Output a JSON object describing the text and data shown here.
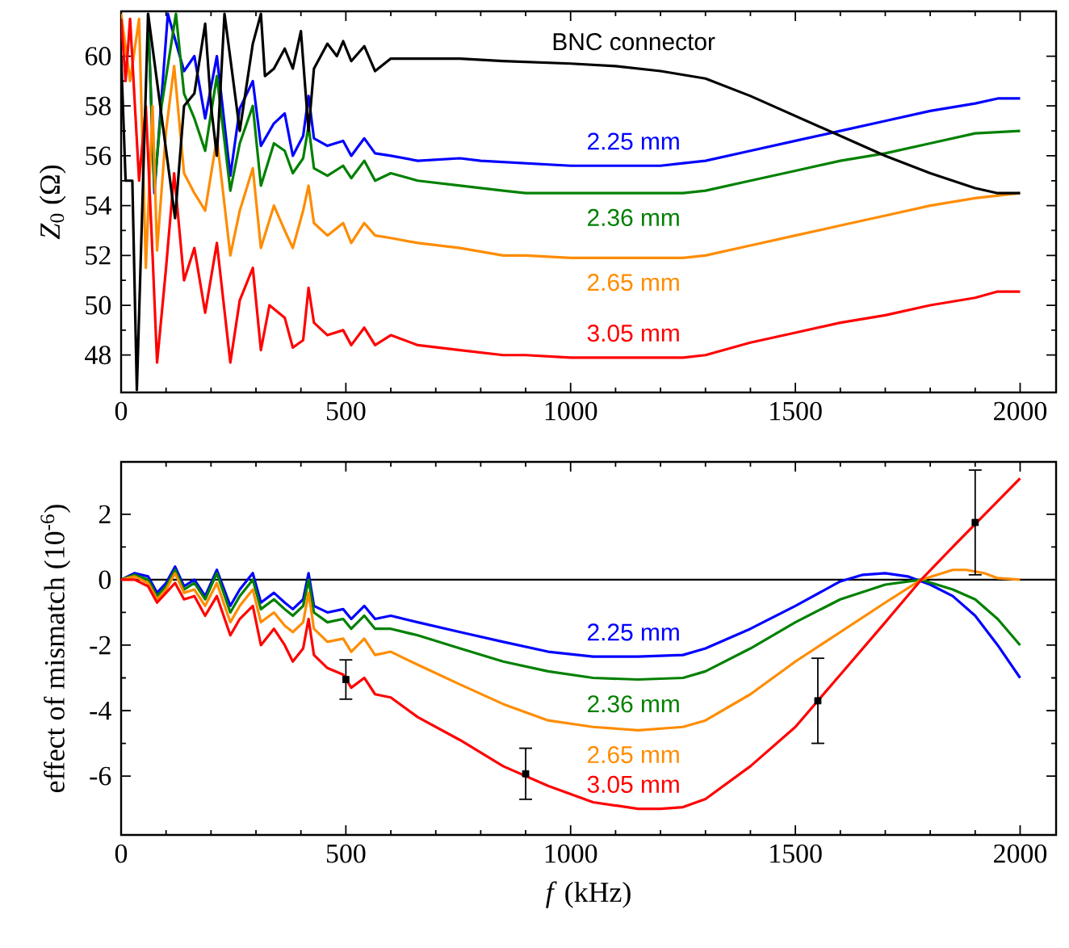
{
  "chart_data": [
    {
      "type": "line",
      "ylabel": "*Z*$_{0}$  (Ω)",
      "xlim": [
        0,
        2080
      ],
      "ylim": [
        46.5,
        61.8
      ],
      "xticks": [
        0,
        500,
        1000,
        1500,
        2000
      ],
      "yticks": [
        48,
        50,
        52,
        54,
        56,
        58,
        60
      ],
      "series": [
        {
          "name": "2.25 mm",
          "color": "#0000ff",
          "x": [
            60,
            74,
            104,
            140,
            163,
            187,
            213,
            243,
            264,
            293,
            311,
            340,
            364,
            382,
            405,
            417,
            429,
            459,
            494,
            512,
            541,
            565,
            600,
            660,
            754,
            800,
            900,
            1000,
            1100,
            1200,
            1250,
            1300,
            1400,
            1500,
            1600,
            1700,
            1800,
            1900,
            1950,
            2000
          ],
          "values": [
            61.7,
            54.5,
            61.7,
            59.4,
            60,
            57.5,
            60,
            55.2,
            57.9,
            59,
            56.4,
            57.3,
            57.7,
            56,
            56.8,
            58.4,
            56.7,
            56.4,
            56.6,
            56,
            56.7,
            56.1,
            56,
            55.8,
            55.9,
            55.8,
            55.7,
            55.6,
            55.6,
            55.6,
            55.7,
            55.8,
            56.2,
            56.6,
            57,
            57.4,
            57.8,
            58.1,
            58.3,
            58.3
          ]
        },
        {
          "name": "2.36 mm",
          "color": "#008000",
          "x": [
            60,
            74,
            90,
            122,
            140,
            163,
            187,
            213,
            243,
            264,
            293,
            311,
            340,
            364,
            382,
            405,
            417,
            429,
            459,
            494,
            512,
            541,
            565,
            600,
            660,
            754,
            850,
            900,
            1000,
            1100,
            1250,
            1300,
            1400,
            1500,
            1600,
            1700,
            1800,
            1900,
            2000
          ],
          "values": [
            61.5,
            54.7,
            58,
            61.7,
            58.5,
            57.5,
            56.2,
            59.2,
            54.6,
            56.5,
            58,
            54.8,
            56.5,
            56.2,
            55.3,
            55.9,
            57.2,
            55.5,
            55.2,
            55.6,
            55.1,
            55.8,
            55,
            55.3,
            55,
            54.8,
            54.6,
            54.5,
            54.5,
            54.5,
            54.5,
            54.6,
            55,
            55.4,
            55.8,
            56.1,
            56.5,
            56.9,
            57
          ]
        },
        {
          "name": "2.65 mm",
          "color": "#ff8c00",
          "x": [
            0,
            20,
            40,
            55,
            70,
            80,
            100,
            118,
            140,
            163,
            187,
            213,
            243,
            264,
            293,
            311,
            340,
            364,
            382,
            405,
            417,
            429,
            459,
            494,
            512,
            541,
            565,
            600,
            660,
            754,
            850,
            900,
            1000,
            1100,
            1250,
            1300,
            1400,
            1500,
            1600,
            1700,
            1800,
            1900,
            2000
          ],
          "values": [
            61.7,
            59,
            61.5,
            51.5,
            58,
            52.2,
            57,
            59.6,
            55.3,
            54.5,
            53.8,
            56.7,
            52,
            53.8,
            55.5,
            52.3,
            54,
            53,
            52.3,
            53.8,
            54.8,
            53.3,
            52.8,
            53.3,
            52.5,
            53.3,
            52.8,
            52.7,
            52.5,
            52.3,
            52,
            52,
            51.9,
            51.9,
            51.9,
            52,
            52.4,
            52.8,
            53.2,
            53.6,
            54,
            54.3,
            54.5
          ]
        },
        {
          "name": "3.05 mm",
          "color": "#ff0000",
          "x": [
            0,
            10,
            20,
            40,
            55,
            70,
            80,
            100,
            118,
            140,
            163,
            187,
            213,
            243,
            264,
            293,
            311,
            330,
            364,
            382,
            405,
            417,
            429,
            459,
            494,
            512,
            541,
            565,
            600,
            660,
            754,
            850,
            900,
            1000,
            1100,
            1250,
            1300,
            1400,
            1500,
            1600,
            1700,
            1800,
            1900,
            1950,
            2000
          ],
          "values": [
            61.5,
            59,
            61.5,
            55,
            58,
            52,
            47.7,
            51.5,
            55.3,
            51,
            52.3,
            49.7,
            52.5,
            47.7,
            50.2,
            51.5,
            48.2,
            50,
            49.5,
            48.3,
            48.6,
            50.7,
            49.3,
            48.8,
            49,
            48.4,
            49.1,
            48.4,
            48.8,
            48.4,
            48.2,
            48,
            48,
            47.9,
            47.9,
            47.9,
            48,
            48.5,
            48.9,
            49.3,
            49.6,
            50,
            50.3,
            50.55,
            50.55
          ]
        },
        {
          "name": "BNC connector",
          "color": "#000000",
          "x": [
            0,
            10,
            25,
            35,
            60,
            120,
            140,
            163,
            187,
            200,
            213,
            230,
            264,
            293,
            311,
            320,
            340,
            364,
            382,
            400,
            417,
            429,
            459,
            480,
            494,
            512,
            541,
            565,
            600,
            660,
            754,
            850,
            1000,
            1100,
            1200,
            1300,
            1400,
            1500,
            1600,
            1700,
            1800,
            1900,
            1950,
            2000
          ],
          "values": [
            60,
            55,
            55,
            46.6,
            61.7,
            53.5,
            58,
            58.5,
            61.3,
            58,
            56,
            61.7,
            57,
            60.5,
            61.7,
            59.2,
            59.5,
            60.3,
            59.5,
            61,
            57,
            59.5,
            60.5,
            60,
            60.6,
            59.8,
            60.4,
            59.4,
            59.9,
            59.9,
            59.9,
            59.8,
            59.7,
            59.6,
            59.4,
            59.1,
            58.4,
            57.6,
            56.8,
            56,
            55.3,
            54.7,
            54.5,
            54.5
          ]
        }
      ]
    },
    {
      "type": "line",
      "xlabel": "*f* (kHz)",
      "ylabel": "effect of mismatch (10$^{-6}$)",
      "xlim": [
        0,
        2080
      ],
      "ylim": [
        -7.8,
        3.6
      ],
      "xticks": [
        0,
        500,
        1000,
        1500,
        2000
      ],
      "yticks": [
        -6,
        -4,
        -2,
        0,
        2
      ],
      "ref_lines": [
        {
          "axis": "y",
          "value": 0,
          "color": "#000000"
        }
      ],
      "series": [
        {
          "name": "2.25 mm",
          "color": "#0000ff",
          "x": [
            0,
            30,
            60,
            80,
            100,
            120,
            140,
            163,
            187,
            213,
            243,
            264,
            293,
            311,
            340,
            364,
            382,
            405,
            417,
            429,
            459,
            494,
            512,
            541,
            565,
            600,
            660,
            754,
            850,
            950,
            1050,
            1150,
            1250,
            1300,
            1400,
            1500,
            1600,
            1650,
            1700,
            1750,
            1800,
            1850,
            1900,
            1950,
            2000
          ],
          "values": [
            0,
            0.2,
            0.1,
            -0.4,
            -0.1,
            0.4,
            -0.2,
            0,
            -0.5,
            0.3,
            -0.8,
            -0.3,
            0.2,
            -0.7,
            -0.4,
            -0.7,
            -0.9,
            -0.6,
            0.2,
            -0.8,
            -1,
            -0.9,
            -1.2,
            -0.8,
            -1.2,
            -1.1,
            -1.3,
            -1.6,
            -1.9,
            -2.2,
            -2.35,
            -2.35,
            -2.3,
            -2.1,
            -1.5,
            -0.8,
            -0.05,
            0.15,
            0.2,
            0.1,
            -0.15,
            -0.5,
            -1.1,
            -2,
            -3
          ]
        },
        {
          "name": "2.36 mm",
          "color": "#008000",
          "x": [
            0,
            30,
            60,
            80,
            100,
            120,
            140,
            163,
            187,
            213,
            243,
            264,
            293,
            311,
            340,
            364,
            382,
            405,
            417,
            429,
            459,
            494,
            512,
            541,
            565,
            600,
            660,
            754,
            850,
            950,
            1050,
            1150,
            1250,
            1300,
            1400,
            1500,
            1600,
            1700,
            1780,
            1850,
            1900,
            1950,
            2000
          ],
          "values": [
            0,
            0.15,
            0,
            -0.5,
            -0.2,
            0.3,
            -0.3,
            -0.1,
            -0.6,
            0.2,
            -1,
            -0.5,
            0,
            -0.9,
            -0.6,
            -0.9,
            -1.1,
            -0.8,
            0,
            -1,
            -1.3,
            -1.2,
            -1.5,
            -1.1,
            -1.5,
            -1.5,
            -1.7,
            -2.1,
            -2.5,
            -2.8,
            -3,
            -3.05,
            -3,
            -2.8,
            -2.1,
            -1.3,
            -0.6,
            -0.15,
            0,
            -0.3,
            -0.6,
            -1.2,
            -2
          ]
        },
        {
          "name": "2.65 mm",
          "color": "#ff8c00",
          "x": [
            0,
            30,
            60,
            80,
            100,
            120,
            140,
            163,
            187,
            213,
            243,
            264,
            293,
            311,
            340,
            364,
            382,
            405,
            417,
            429,
            459,
            494,
            512,
            541,
            565,
            600,
            660,
            754,
            850,
            950,
            1050,
            1150,
            1250,
            1300,
            1400,
            1500,
            1600,
            1700,
            1780,
            1850,
            1880,
            1920,
            1950,
            2000
          ],
          "values": [
            0,
            0.1,
            -0.1,
            -0.6,
            -0.3,
            0.2,
            -0.4,
            -0.3,
            -0.8,
            -0.1,
            -1.3,
            -0.8,
            -0.3,
            -1.3,
            -1,
            -1.4,
            -1.6,
            -1.3,
            -0.4,
            -1.5,
            -1.9,
            -1.8,
            -2.2,
            -1.8,
            -2.3,
            -2.2,
            -2.6,
            -3.2,
            -3.8,
            -4.3,
            -4.5,
            -4.6,
            -4.5,
            -4.3,
            -3.5,
            -2.5,
            -1.6,
            -0.7,
            0,
            0.3,
            0.3,
            0.2,
            0.05,
            0
          ]
        },
        {
          "name": "3.05 mm",
          "color": "#ff0000",
          "x": [
            0,
            30,
            60,
            80,
            100,
            120,
            140,
            163,
            187,
            213,
            243,
            264,
            293,
            311,
            340,
            364,
            382,
            405,
            417,
            429,
            459,
            494,
            512,
            541,
            565,
            600,
            660,
            754,
            850,
            950,
            1050,
            1150,
            1200,
            1250,
            1300,
            1400,
            1500,
            1600,
            1700,
            1780,
            1850,
            1900,
            1950,
            2000
          ],
          "values": [
            0,
            0,
            -0.2,
            -0.7,
            -0.4,
            -0.1,
            -0.6,
            -0.5,
            -1.1,
            -0.5,
            -1.7,
            -1.2,
            -0.8,
            -2,
            -1.5,
            -2,
            -2.5,
            -2.1,
            -1.2,
            -2.3,
            -2.7,
            -2.9,
            -3.3,
            -3,
            -3.5,
            -3.6,
            -4.2,
            -4.9,
            -5.7,
            -6.3,
            -6.8,
            -7,
            -7,
            -6.95,
            -6.7,
            -5.7,
            -4.5,
            -2.9,
            -1.3,
            0,
            1,
            1.7,
            2.4,
            3.1
          ]
        },
        {
          "type": "scatter",
          "marker": "square",
          "color": "#000000",
          "x": [
            500,
            900,
            1550,
            1900
          ],
          "values": [
            -3.05,
            -5.93,
            -3.7,
            1.75
          ],
          "errors": [
            0.6,
            0.78,
            1.3,
            1.6
          ]
        }
      ]
    }
  ]
}
